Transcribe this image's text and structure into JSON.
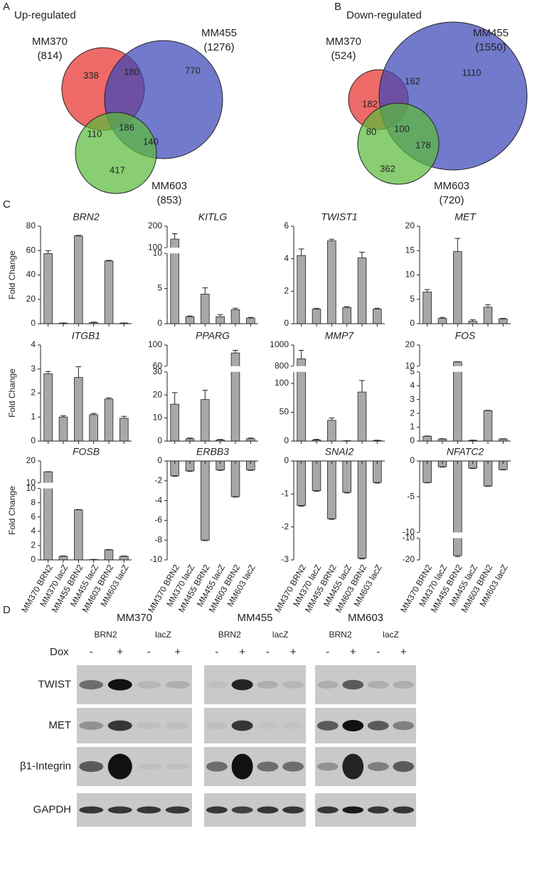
{
  "panel_labels": [
    "A",
    "B",
    "C",
    "D"
  ],
  "chart_data": [
    {
      "type": "venn",
      "title": "Up-regulated",
      "sets": [
        {
          "name": "MM370",
          "total": 814,
          "total_label": "(814)",
          "color": "#e8312f"
        },
        {
          "name": "MM455",
          "total": 1276,
          "total_label": "(1276)",
          "color": "#3b47b9"
        },
        {
          "name": "MM603",
          "total": 853,
          "total_label": "(853)",
          "color": "#5cbb3c"
        }
      ],
      "regions": [
        338,
        180,
        770,
        110,
        186,
        140,
        417
      ]
    },
    {
      "type": "venn",
      "title": "Down-regulated",
      "sets": [
        {
          "name": "MM370",
          "total": 524,
          "total_label": "(524)",
          "color": "#e8312f"
        },
        {
          "name": "MM455",
          "total": 1550,
          "total_label": "(1550)",
          "color": "#3b47b9"
        },
        {
          "name": "MM603",
          "total": 720,
          "total_label": "(720)",
          "color": "#5cbb3c"
        }
      ],
      "regions": [
        182,
        162,
        1110,
        80,
        100,
        178,
        362
      ]
    },
    {
      "type": "bar",
      "title": "BRN2",
      "ylabel": "Fold Change",
      "color": "#a8a8a8",
      "categories": [
        null,
        null,
        null,
        null,
        null,
        null
      ],
      "values": [
        57.5,
        0.5,
        72,
        1,
        51.5,
        0.5
      ],
      "errors": [
        2.5,
        0.1,
        0.5,
        0.3,
        0.5,
        0.1
      ],
      "ylim": [
        0,
        80
      ],
      "yticks": [
        0,
        20,
        40,
        60,
        80
      ]
    },
    {
      "type": "bar",
      "title": "KITLG",
      "color": "#a8a8a8",
      "categories": [
        null,
        null,
        null,
        null,
        null,
        null
      ],
      "values": [
        140,
        1,
        4.2,
        1,
        2,
        0.8
      ],
      "errors": [
        25,
        0.1,
        0.9,
        0.3,
        0.2,
        0.1
      ],
      "ylim": [
        0,
        10
      ],
      "yticks": [
        0,
        5,
        10
      ],
      "break": {
        "ylim": [
          100,
          200
        ],
        "yticks": [
          100,
          200
        ]
      }
    },
    {
      "type": "bar",
      "title": "TWIST1",
      "color": "#a8a8a8",
      "categories": [
        null,
        null,
        null,
        null,
        null,
        null
      ],
      "values": [
        4.2,
        0.9,
        5.1,
        1,
        4.05,
        0.9
      ],
      "errors": [
        0.4,
        0.05,
        0.1,
        0.05,
        0.35,
        0.05
      ],
      "ylim": [
        0,
        6
      ],
      "yticks": [
        0,
        2,
        4,
        6
      ]
    },
    {
      "type": "bar",
      "title": "MET",
      "color": "#a8a8a8",
      "categories": [
        null,
        null,
        null,
        null,
        null,
        null
      ],
      "values": [
        6.5,
        1.1,
        14.8,
        0.5,
        3.4,
        1
      ],
      "errors": [
        0.5,
        0.2,
        2.7,
        0.3,
        0.5,
        0.1
      ],
      "ylim": [
        0,
        20
      ],
      "yticks": [
        0,
        5,
        10,
        15,
        20
      ]
    },
    {
      "type": "bar",
      "title": "ITGB1",
      "ylabel": "Fold Change",
      "color": "#a8a8a8",
      "categories": [
        null,
        null,
        null,
        null,
        null,
        null
      ],
      "values": [
        2.8,
        1,
        2.65,
        1.1,
        1.75,
        0.95
      ],
      "errors": [
        0.1,
        0.05,
        0.45,
        0.05,
        0.05,
        0.08
      ],
      "ylim": [
        0,
        4
      ],
      "yticks": [
        0,
        1,
        2,
        3,
        4
      ]
    },
    {
      "type": "bar",
      "title": "PPARG",
      "color": "#a8a8a8",
      "categories": [
        null,
        null,
        null,
        null,
        null,
        null
      ],
      "values": [
        16,
        1,
        18,
        0.5,
        85,
        1
      ],
      "errors": [
        5,
        0.3,
        4,
        0.2,
        5,
        0.3
      ],
      "ylim": [
        0,
        30
      ],
      "yticks": [
        0,
        10,
        20,
        30
      ],
      "break": {
        "ylim": [
          60,
          100
        ],
        "yticks": [
          60,
          100
        ]
      }
    },
    {
      "type": "bar",
      "title": "MMP7",
      "color": "#a8a8a8",
      "categories": [
        null,
        null,
        null,
        null,
        null,
        null
      ],
      "values": [
        870,
        2,
        36,
        0.5,
        85,
        1
      ],
      "errors": [
        80,
        1,
        4,
        0.2,
        20,
        0.5
      ],
      "ylim": [
        0,
        120
      ],
      "yticks": [
        0,
        50,
        100
      ],
      "break": {
        "ylim": [
          800,
          1000
        ],
        "yticks": [
          800,
          1000
        ]
      }
    },
    {
      "type": "bar",
      "title": "FOS",
      "color": "#a8a8a8",
      "categories": [
        null,
        null,
        null,
        null,
        null,
        null
      ],
      "values": [
        0.35,
        0.15,
        12,
        0.05,
        2.2,
        0.15
      ],
      "errors": [
        0.02,
        0.02,
        0.1,
        0.02,
        0.02,
        0.02
      ],
      "ylim": [
        0,
        5
      ],
      "yticks": [
        0,
        1,
        2,
        3,
        4,
        5
      ],
      "break": {
        "ylim": [
          10,
          20
        ],
        "yticks": [
          10,
          20
        ]
      }
    },
    {
      "type": "bar",
      "title": "FOSB",
      "ylabel": "Fold Change",
      "color": "#a8a8a8",
      "categories": [
        "MM370 BRN2",
        "MM370 lacZ",
        "MM455 BRN2",
        "MM455 lacZ",
        "MM603 BRN2",
        "MM603 lacZ"
      ],
      "values": [
        15,
        0.5,
        7,
        0.05,
        1.4,
        0.5
      ],
      "errors": [
        0.1,
        0.05,
        0.05,
        0.02,
        0.05,
        0.05
      ],
      "ylim": [
        0,
        10
      ],
      "yticks": [
        0,
        2,
        4,
        6,
        8,
        10
      ],
      "break": {
        "ylim": [
          10,
          20
        ],
        "yticks": [
          10,
          20
        ]
      }
    },
    {
      "type": "bar",
      "title": "ERBB3",
      "color": "#a8a8a8",
      "categories": [
        "MM370 BRN2",
        "MM370 lacZ",
        "MM455 BRN2",
        "MM455 lacZ",
        "MM603 BRN2",
        "MM603 lacZ"
      ],
      "values": [
        -1.5,
        -1,
        -8,
        -0.9,
        -3.6,
        -0.9
      ],
      "errors": [
        0.05,
        0.05,
        0.05,
        0.05,
        0.05,
        0.05
      ],
      "ylim": [
        -10,
        0
      ],
      "yticks": [
        -10,
        -8,
        -6,
        -4,
        -2,
        0
      ]
    },
    {
      "type": "bar",
      "title": "SNAI2",
      "color": "#a8a8a8",
      "categories": [
        "MM370 BRN2",
        "MM370 lacZ",
        "MM455 BRN2",
        "MM455 lacZ",
        "MM603 BRN2",
        "MM603 lacZ"
      ],
      "values": [
        -1.35,
        -0.9,
        -1.75,
        -0.95,
        -2.95,
        -0.65
      ],
      "errors": [
        0.02,
        0.02,
        0.02,
        0.02,
        0.02,
        0.02
      ],
      "ylim": [
        -3,
        0
      ],
      "yticks": [
        -3,
        -2,
        -1,
        0
      ]
    },
    {
      "type": "bar",
      "title": "NFATC2",
      "color": "#a8a8a8",
      "categories": [
        "MM370 BRN2",
        "MM370 lacZ",
        "MM455 BRN2",
        "MM455 lacZ",
        "MM603 BRN2",
        "MM603 lacZ"
      ],
      "values": [
        -3,
        -0.8,
        -18,
        -1,
        -3.5,
        -1.2
      ],
      "errors": [
        0.05,
        0.05,
        0.5,
        0.05,
        0.05,
        0.05
      ],
      "ylim": [
        -10,
        0
      ],
      "yticks": [
        -10,
        -5,
        0
      ],
      "break": {
        "ylim": [
          -20,
          -10
        ],
        "yticks": [
          -20,
          -10
        ]
      }
    }
  ],
  "blot": {
    "groups": [
      {
        "name": "MM370",
        "conditions": [
          "BRN2",
          "lacZ"
        ]
      },
      {
        "name": "MM455",
        "conditions": [
          "BRN2",
          "lacZ"
        ]
      },
      {
        "name": "MM603",
        "conditions": [
          "BRN2",
          "lacZ"
        ]
      }
    ],
    "dox_label": "Dox",
    "dox": [
      "-",
      "+",
      "-",
      "+"
    ],
    "rows": [
      "TWIST",
      "MET",
      "β1-Integrin",
      "GAPDH"
    ]
  }
}
